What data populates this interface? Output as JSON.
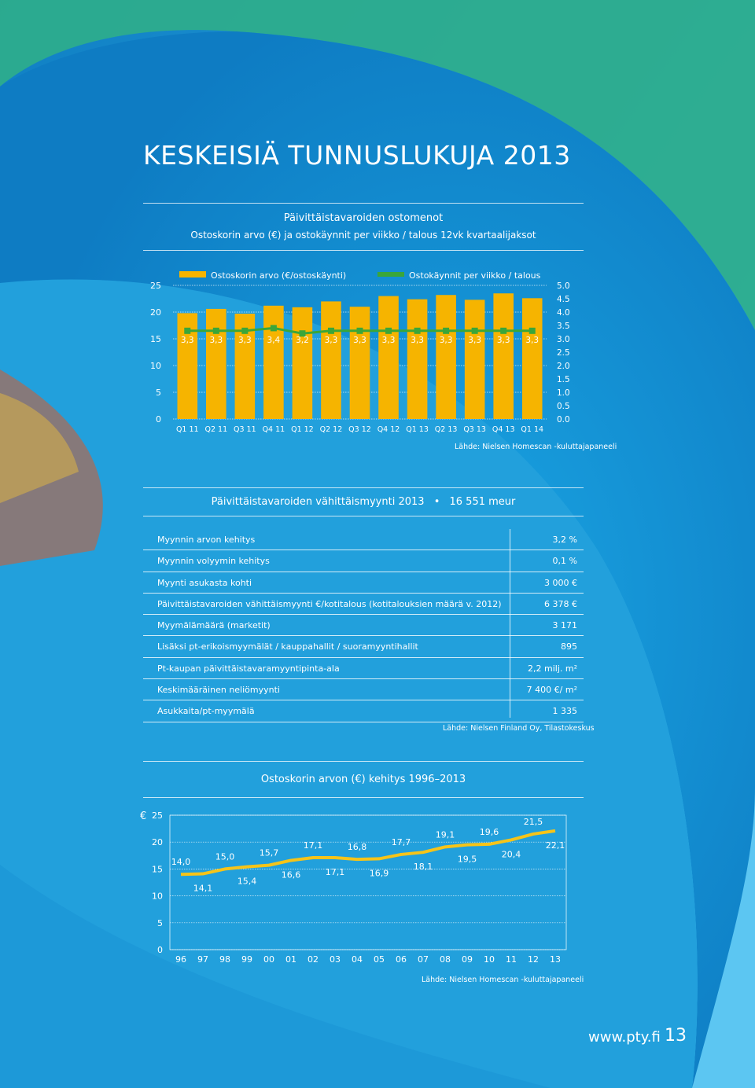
{
  "page": {
    "title": "KESKEISIÄ TUNNUSLUKUJA 2013",
    "footer_url": "www.pty.fi",
    "page_number": "13"
  },
  "colors": {
    "bar": "#f6b400",
    "line_green": "#3aa63a",
    "trend_line": "#f6c419",
    "text": "#ffffff"
  },
  "section1": {
    "title": "Päivittäistavaroiden ostomenot",
    "subtitle": "Ostoskorin arvo (€) ja ostokäynnit per viikko / talous 12vk kvartaalijaksot",
    "source": "Lähde: Nielsen Homescan -kuluttajapaneeli"
  },
  "section2": {
    "title": "Päivittäistavaroiden vähittäismyynti 2013",
    "bullet": "•",
    "total": "16 551 meur",
    "source": "Lähde: Nielsen Finland Oy, Tilastokeskus",
    "rows": [
      {
        "label": "Myynnin arvon kehitys",
        "value": "3,2 %"
      },
      {
        "label": "Myynnin volyymin kehitys",
        "value": "0,1 %"
      },
      {
        "label": "Myynti asukasta kohti",
        "value": "3 000 €"
      },
      {
        "label": "Päivittäistavaroiden vähittäismyynti €/kotitalous (kotitalouksien määrä v. 2012)",
        "value": "6 378 €"
      },
      {
        "label": "Myymälämäärä (marketit)",
        "value": "3 171"
      },
      {
        "label": "Lisäksi pt-erikoismyymälät / kauppahallit / suoramyyntihallit",
        "value": "895"
      },
      {
        "label": "Pt-kaupan päivittäistavaramyyntipinta-ala",
        "value": "2,2 milj. m²"
      },
      {
        "label": "Keskimääräinen neliömyynti",
        "value": "7 400 €/ m²"
      },
      {
        "label": "Asukkaita/pt-myymälä",
        "value": "1 335"
      }
    ]
  },
  "section3": {
    "title": "Ostoskorin arvon (€) kehitys 1996–2013",
    "source": "Lähde: Nielsen Homescan -kuluttajapaneeli"
  },
  "chart_data": [
    {
      "type": "bar",
      "categories": [
        "Q1 11",
        "Q2 11",
        "Q3 11",
        "Q4 11",
        "Q1 12",
        "Q2 12",
        "Q3 12",
        "Q4 12",
        "Q1 13",
        "Q2 13",
        "Q3 13",
        "Q4 13",
        "Q1 14"
      ],
      "series": [
        {
          "name": "Ostoskorin arvo (€/ostoskäynti)",
          "type": "bar",
          "axis": "left",
          "values": [
            19.8,
            20.6,
            19.7,
            21.2,
            20.9,
            22.0,
            21.0,
            23.0,
            22.4,
            23.2,
            22.3,
            23.5,
            22.6
          ]
        },
        {
          "name": "Ostokäynnit per viikko / talous",
          "type": "line",
          "axis": "right",
          "values": [
            3.3,
            3.3,
            3.3,
            3.4,
            3.2,
            3.3,
            3.3,
            3.3,
            3.3,
            3.3,
            3.3,
            3.3,
            3.3
          ],
          "labels": [
            "3,3",
            "3,3",
            "3,3",
            "3,4",
            "3,2",
            "3,3",
            "3,3",
            "3,3",
            "3,3",
            "3,3",
            "3,3",
            "3,3",
            "3,3"
          ]
        }
      ],
      "y_ticks": [
        "0",
        "5",
        "10",
        "15",
        "20",
        "25"
      ],
      "ylim": [
        0,
        25
      ],
      "y2_ticks": [
        "0.0",
        "0.5",
        "1.0",
        "1.5",
        "2.0",
        "2.5",
        "3.0",
        "3.5",
        "4.0",
        "4.5",
        "5.0"
      ],
      "y2lim": [
        0,
        5
      ],
      "legend_position": "top"
    },
    {
      "type": "line",
      "ylabel": "€",
      "x": [
        "96",
        "97",
        "98",
        "99",
        "00",
        "01",
        "02",
        "03",
        "04",
        "05",
        "06",
        "07",
        "08",
        "09",
        "10",
        "11",
        "12",
        "13"
      ],
      "values": [
        14.0,
        14.1,
        15.0,
        15.4,
        15.7,
        16.6,
        17.1,
        17.1,
        16.8,
        16.9,
        17.7,
        18.1,
        19.1,
        19.5,
        19.6,
        20.4,
        21.5,
        22.1
      ],
      "labels": [
        "14,0",
        "14,1",
        "15,0",
        "15,4",
        "15,7",
        "16,6",
        "17,1",
        "17,1",
        "16,8",
        "16,9",
        "17,7",
        "18,1",
        "19,1",
        "19,5",
        "19,6",
        "20,4",
        "21,5",
        "22,1"
      ],
      "y_ticks": [
        "0",
        "5",
        "10",
        "15",
        "20",
        "25"
      ],
      "ylim": [
        0,
        25
      ]
    }
  ]
}
